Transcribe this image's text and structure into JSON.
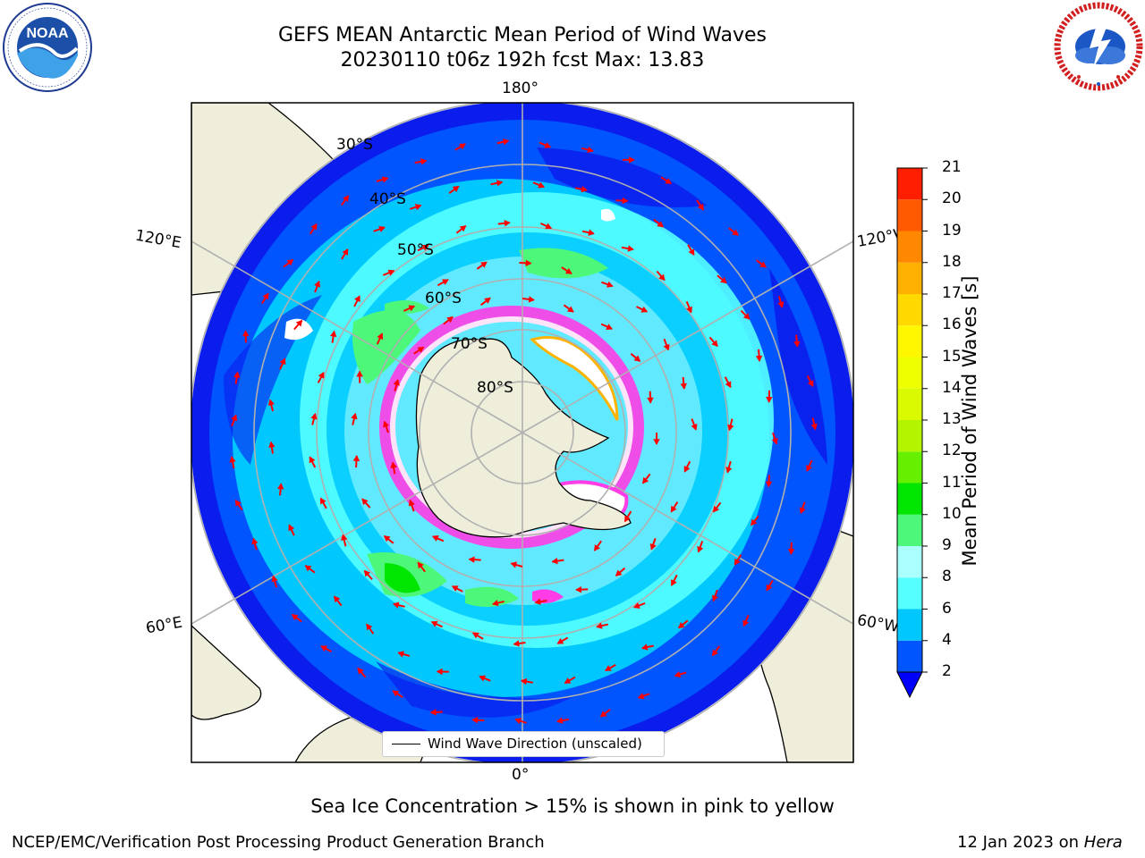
{
  "title": {
    "line1": "GEFS MEAN Antarctic Mean Period of Wind Waves",
    "line2": "20230110 t06z 192h fcst   Max: 13.83"
  },
  "logos": {
    "left": {
      "name": "NOAA",
      "text": "NOAA",
      "ring_text": "NATIONAL OCEANIC AND ATMOSPHERIC ADMINISTRATION · U.S. DEPARTMENT OF COMMERCE"
    },
    "right": {
      "name": "National Weather Service",
      "ring_text": "NATIONAL WEATHER SERVICE"
    }
  },
  "map": {
    "projection": "south-polar-stereographic",
    "longitude_labels": {
      "top": "180°",
      "bottom": "0°",
      "upper_left": "120°E",
      "upper_right": "120°W",
      "lower_left": "60°E",
      "lower_right": "60°W"
    },
    "latitude_labels": [
      "30°S",
      "40°S",
      "50°S",
      "60°S",
      "70°S",
      "80°S"
    ],
    "legend": "Wind Wave Direction (unscaled)",
    "colors": {
      "land": "#efeedb",
      "ocean_lowest": "#0a1dec",
      "frame": "#000000"
    }
  },
  "colorbar": {
    "label": "Mean Period of Wind Waves [s]",
    "ticks": [
      "2",
      "4",
      "6",
      "8",
      "9",
      "10",
      "11",
      "12",
      "13",
      "14",
      "15",
      "16",
      "17",
      "18",
      "19",
      "20",
      "21"
    ],
    "colors": [
      "#0055ff",
      "#00c8ff",
      "#55ffff",
      "#aaffff",
      "#4cf77a",
      "#00e600",
      "#66f000",
      "#b3f500",
      "#d9fa00",
      "#eeff00",
      "#fff700",
      "#ffd900",
      "#ffb000",
      "#ff8800",
      "#ff5a00",
      "#ff1f00"
    ],
    "under_color": "#0000ff"
  },
  "footer": {
    "caption": "Sea Ice Concentration > 15% is shown in pink to yellow",
    "credit": "NCEP/EMC/Verification Post Processing Product Generation Branch",
    "date": "12 Jan 2023 on ",
    "machine": "Hera"
  }
}
